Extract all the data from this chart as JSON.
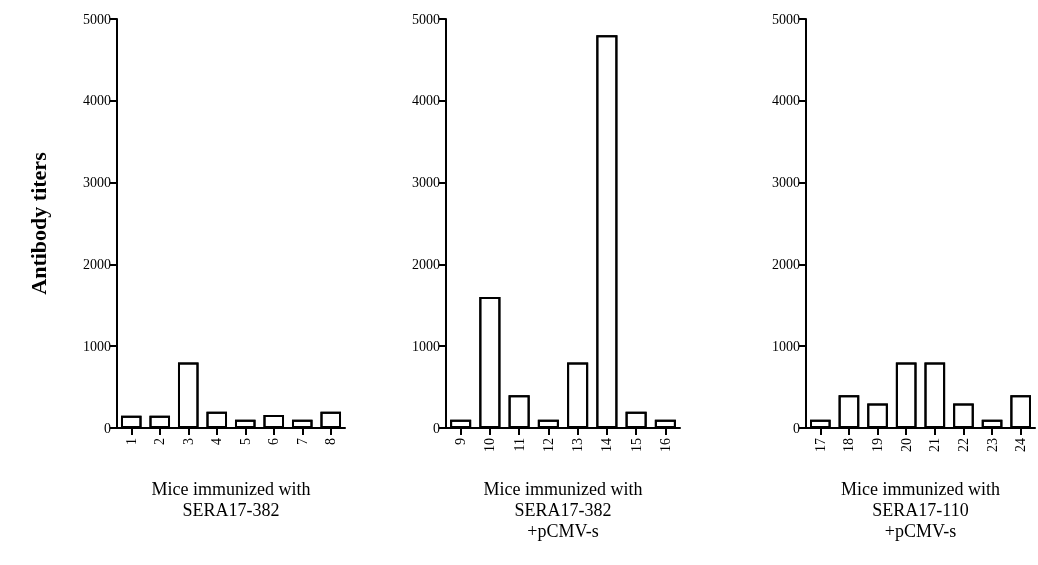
{
  "chart_data": [
    {
      "type": "bar",
      "ylabel": "Antibody titers",
      "xlabel": "Mice immunized with\nSERA17-382",
      "categories": [
        "1",
        "2",
        "3",
        "4",
        "5",
        "6",
        "7",
        "8"
      ],
      "values": [
        150,
        150,
        800,
        200,
        100,
        160,
        100,
        200
      ],
      "color": "#ffffff",
      "ylim": [
        0,
        5000
      ],
      "yticks": [
        0,
        1000,
        2000,
        3000,
        4000,
        5000
      ],
      "grid": false
    },
    {
      "type": "bar",
      "xlabel": "Mice immunized with\nSERA17-382\n+pCMV-s",
      "categories": [
        "9",
        "10",
        "11",
        "12",
        "13",
        "14",
        "15",
        "16"
      ],
      "values": [
        100,
        1600,
        400,
        100,
        800,
        4800,
        200,
        100
      ],
      "color": "#ffffff",
      "ylim": [
        0,
        5000
      ],
      "yticks": [
        0,
        1000,
        2000,
        3000,
        4000,
        5000
      ],
      "grid": false
    },
    {
      "type": "bar",
      "xlabel": "Mice immunized with\nSERA17-110\n+pCMV-s",
      "categories": [
        "17",
        "18",
        "19",
        "20",
        "21",
        "22",
        "23",
        "24"
      ],
      "values": [
        100,
        400,
        300,
        800,
        800,
        300,
        100,
        400
      ],
      "color": "#ffffff",
      "ylim": [
        0,
        5000
      ],
      "yticks": [
        0,
        1000,
        2000,
        3000,
        4000,
        5000
      ],
      "grid": false
    }
  ]
}
